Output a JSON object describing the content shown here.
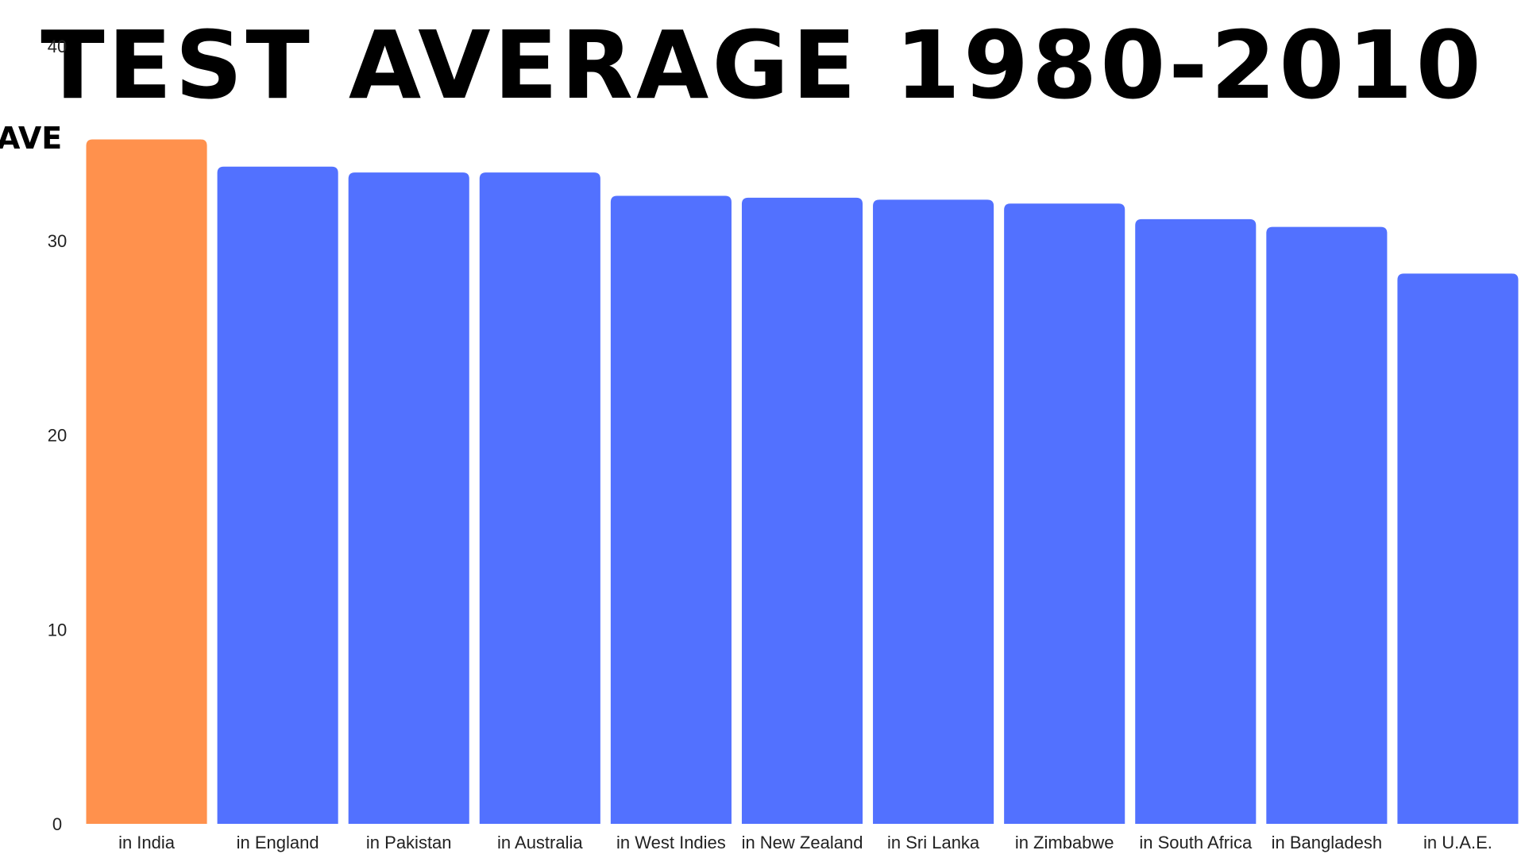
{
  "chart_data": {
    "type": "bar",
    "title": "TEST AVERAGE 1980-2010",
    "ylabel": "AVE",
    "xlabel": "",
    "categories": [
      "in India",
      "in England",
      "in Pakistan",
      "in Australia",
      "in West Indies",
      "in New Zealand",
      "in Sri Lanka",
      "in Zimbabwe",
      "in South Africa",
      "in Bangladesh",
      "in U.A.E."
    ],
    "values": [
      35.2,
      33.8,
      33.5,
      33.5,
      32.3,
      32.2,
      32.1,
      31.9,
      31.1,
      30.7,
      28.3
    ],
    "ylim": [
      0,
      40
    ],
    "yticks": [
      0,
      10,
      20,
      30,
      40
    ],
    "grid": false,
    "highlight_index": 0,
    "colors": {
      "highlight": "#FF914D",
      "default": "#5271FF"
    }
  }
}
